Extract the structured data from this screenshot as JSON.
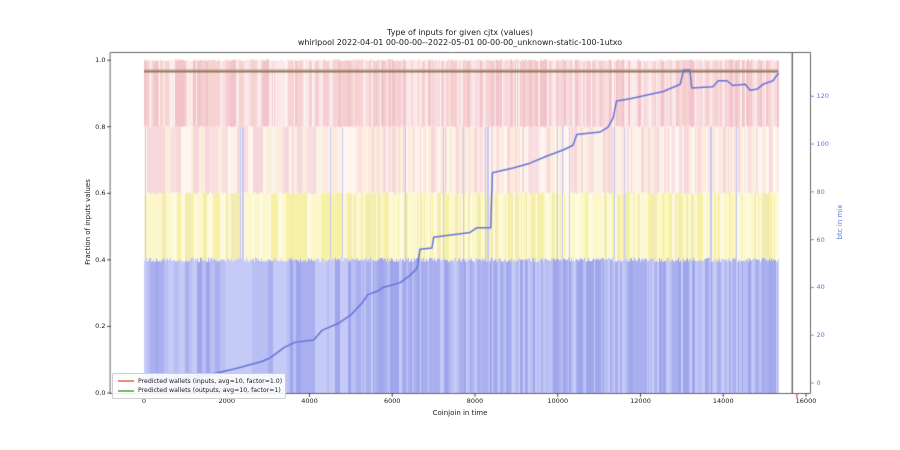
{
  "title": {
    "line1": "Type of inputs for given cjtx (values)",
    "line2": "whirlpool 2022-04-01 00-00-00--2022-05-01 00-00-00_unknown-static-100-1utxo"
  },
  "axes": {
    "x": {
      "label": "Coinjoin in time",
      "ticks": [
        "0",
        "2000",
        "4000",
        "6000",
        "8000",
        "10000",
        "12000",
        "14000",
        "16000"
      ],
      "tick_values": [
        0,
        2000,
        4000,
        6000,
        8000,
        10000,
        12000,
        14000,
        16000
      ]
    },
    "y_left": {
      "label": "Fraction of inputs values",
      "ticks": [
        "0.0",
        "0.2",
        "0.4",
        "0.6",
        "0.8",
        "1.0"
      ],
      "tick_values": [
        0.0,
        0.2,
        0.4,
        0.6,
        0.8,
        1.0
      ]
    },
    "y_right": {
      "label": "btc in mix",
      "color": "#5b79dd",
      "ticks": [
        "0",
        "20",
        "40",
        "60",
        "80",
        "100",
        "120"
      ],
      "tick_values": [
        0,
        20,
        40,
        60,
        80,
        100,
        120
      ]
    }
  },
  "legend": {
    "items": [
      {
        "label": "Predicted wallets (inputs, avg=10, factor=1.0)",
        "color": "#ef8a80"
      },
      {
        "label": "Predicted wallets (outputs, avg=10, factor=1)",
        "color": "#7cbf7c"
      }
    ]
  },
  "chart_data": {
    "type": "stacked-bar+line",
    "xlabel": "Coinjoin in time",
    "ylabel_left": "Fraction of inputs values",
    "ylabel_right": "btc in mix",
    "xlim": [
      0,
      16000
    ],
    "ylim_left": [
      0,
      1.02
    ],
    "ylim_right": [
      -4,
      138
    ],
    "bands": [
      {
        "name": "blue-fraction",
        "range": [
          0.0,
          0.4
        ],
        "colors": [
          "#aab0ef",
          "#b9bef3",
          "#9fa6ec",
          "#c6caf6"
        ]
      },
      {
        "name": "yellow-fraction",
        "range": [
          0.4,
          0.6
        ],
        "colors": [
          "#f7f1a6",
          "#fcf8cc",
          "#f3ecb0",
          "#fdfadd"
        ]
      },
      {
        "name": "pale-fraction",
        "range": [
          0.6,
          0.8
        ],
        "colors": [
          "#fdf2ea",
          "#f9dfe1",
          "#fbeedd",
          "#fff7ef",
          "#f7d8da",
          "#fceade"
        ]
      },
      {
        "name": "pink-fraction",
        "range": [
          0.8,
          1.0
        ],
        "colors": [
          "#f5ced2",
          "#f9dce0",
          "#f2c4c9",
          "#fbe8e9",
          "#f6d3d1"
        ]
      }
    ],
    "bars_x_extent": [
      0,
      15330
    ],
    "hlines": [
      {
        "series": "Predicted wallets (inputs, avg=10, factor=1.0)",
        "y": 0.969,
        "color": "#c09080"
      },
      {
        "series": "Predicted wallets (outputs, avg=10, factor=1)",
        "y": 0.966,
        "color": "#8c7b52"
      }
    ],
    "red_tick_x": 15780,
    "btc_line": {
      "label": "btc in mix",
      "color": "#6774d6",
      "axis": "right",
      "points": [
        [
          0,
          1
        ],
        [
          500,
          1.5
        ],
        [
          800,
          2
        ],
        [
          1100,
          2.5
        ],
        [
          1700,
          4
        ],
        [
          2200,
          6
        ],
        [
          2850,
          9
        ],
        [
          3050,
          10.5
        ],
        [
          3400,
          15
        ],
        [
          3650,
          17
        ],
        [
          4100,
          18
        ],
        [
          4300,
          22
        ],
        [
          4700,
          25
        ],
        [
          5000,
          28.5
        ],
        [
          5270,
          33.5
        ],
        [
          5410,
          37
        ],
        [
          5650,
          38.5
        ],
        [
          5780,
          40
        ],
        [
          6190,
          42
        ],
        [
          6430,
          45
        ],
        [
          6600,
          48
        ],
        [
          6670,
          56
        ],
        [
          6960,
          56.5
        ],
        [
          7000,
          61
        ],
        [
          7880,
          63
        ],
        [
          8050,
          65
        ],
        [
          8380,
          65
        ],
        [
          8420,
          88
        ],
        [
          8920,
          90
        ],
        [
          9330,
          92
        ],
        [
          9740,
          95
        ],
        [
          10130,
          97.5
        ],
        [
          10370,
          99.5
        ],
        [
          10460,
          104
        ],
        [
          11020,
          105
        ],
        [
          11210,
          107
        ],
        [
          11340,
          111
        ],
        [
          11420,
          118
        ],
        [
          11750,
          119
        ],
        [
          12160,
          120.5
        ],
        [
          12550,
          122
        ],
        [
          12960,
          125
        ],
        [
          13040,
          131
        ],
        [
          13190,
          131
        ],
        [
          13240,
          123.5
        ],
        [
          13750,
          124
        ],
        [
          13880,
          126.5
        ],
        [
          14090,
          126.5
        ],
        [
          14230,
          124.5
        ],
        [
          14530,
          125
        ],
        [
          14650,
          122.5
        ],
        [
          14820,
          123
        ],
        [
          14960,
          125
        ],
        [
          15200,
          126.5
        ],
        [
          15330,
          129.5
        ]
      ]
    }
  }
}
